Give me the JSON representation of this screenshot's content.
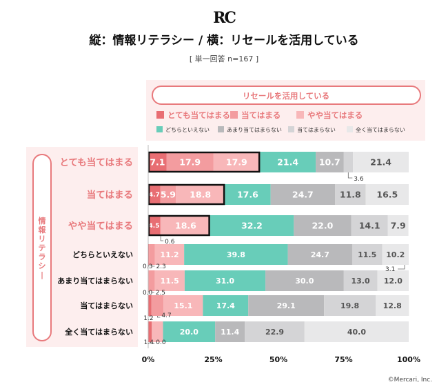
{
  "header": {
    "logo": "RC",
    "title": "縦：情報リテラシー / 横：リセールを活用している",
    "subtitle": "[ 単一回答 n=167 ]"
  },
  "footer": {
    "copyright": "©Mercari, Inc."
  },
  "colors": {
    "s1": "#e86e73",
    "s2": "#f39c9f",
    "s3": "#f8b7b9",
    "s4": "#68cdb9",
    "s5": "#b9b9bb",
    "s6": "#d4d4d6",
    "s7": "#e8e8e9",
    "panel": "#fdeeee",
    "accent": "#e8797c",
    "highlight_border": "#111111"
  },
  "chart_data": {
    "type": "bar",
    "orientation": "horizontal",
    "stacked": true,
    "legend_title": "リセールを活用している",
    "y_axis_title": "情報リテラシー",
    "categories": [
      "とても当てはまる",
      "当てはまる",
      "やや当てはまる",
      "どちらといえない",
      "あまり当てはまらない",
      "当てはまらない",
      "全く当てはまらない"
    ],
    "x_ticks": [
      "0%",
      "25%",
      "50%",
      "75%",
      "100%"
    ],
    "xlim": [
      0,
      100
    ],
    "series": [
      {
        "name": "とても当てはまる",
        "values": [
          7.1,
          4.7,
          4.5,
          0.3,
          0.0,
          1.2,
          1.4
        ]
      },
      {
        "name": "当てはまる",
        "values": [
          17.9,
          5.9,
          0.6,
          2.3,
          2.5,
          4.7,
          0.0
        ]
      },
      {
        "name": "やや当てはまる",
        "values": [
          17.9,
          18.8,
          18.6,
          11.2,
          11.5,
          15.1,
          4.3
        ]
      },
      {
        "name": "どちらといえない",
        "values": [
          21.4,
          17.6,
          32.2,
          39.8,
          31.0,
          17.4,
          20.0
        ]
      },
      {
        "name": "あまり当てはまらない",
        "values": [
          10.7,
          24.7,
          22.0,
          24.7,
          30.0,
          29.1,
          11.4
        ]
      },
      {
        "name": "当てはまらない",
        "values": [
          3.6,
          11.8,
          14.1,
          11.5,
          13.0,
          19.8,
          22.9
        ]
      },
      {
        "name": "全く当てはまらない",
        "values": [
          21.4,
          16.5,
          7.9,
          10.2,
          12.0,
          12.8,
          40.0
        ]
      }
    ],
    "highlighted_series_count": 3,
    "highlighted_rows": 3
  }
}
